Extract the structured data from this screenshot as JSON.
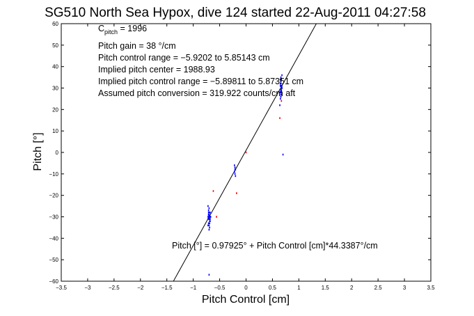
{
  "chart_data": {
    "type": "scatter",
    "title": "SG510 North Sea Hypox, dive 124 started 22-Aug-2011 04:27:58",
    "xlabel": "Pitch Control [cm]",
    "ylabel": "Pitch [°]",
    "xlim": [
      -3.5,
      3.5
    ],
    "ylim": [
      -60,
      60
    ],
    "xticks": [
      -3.5,
      -3,
      -2.5,
      -2,
      -1.5,
      -1,
      -0.5,
      0,
      0.5,
      1,
      1.5,
      2,
      2.5,
      3,
      3.5
    ],
    "yticks": [
      -60,
      -50,
      -40,
      -30,
      -20,
      -10,
      0,
      10,
      20,
      30,
      40,
      50,
      60
    ],
    "xtick_labels": [
      "−3.5",
      "−3",
      "−2.5",
      "−2",
      "−1.5",
      "−1",
      "−0.5",
      "0",
      "0.5",
      "1",
      "1.5",
      "2",
      "2.5",
      "3",
      "3.5"
    ],
    "ytick_labels": [
      "−60",
      "−50",
      "−40",
      "−30",
      "−20",
      "−10",
      "0",
      "10",
      "20",
      "30",
      "40",
      "50",
      "60"
    ],
    "grid": false,
    "annotations": {
      "c_pitch_main": "C",
      "c_pitch_sub": "pitch",
      "c_pitch_value": " = 1996",
      "lines": [
        "Pitch gain = 38 °/cm",
        "Pitch control range = −5.9202 to 5.85143 cm",
        "Implied pitch center = 1988.93",
        "Implied pitch control range = −5.89811 to 5.87351 cm",
        "Assumed pitch conversion = 319.922 counts/cm aft"
      ],
      "fit_label": "Pitch [°] = 0.97925° + Pitch Control [cm]*44.3387°/cm"
    },
    "fit_line": {
      "intercept": 0.97925,
      "slope": 44.3387,
      "color": "#000000"
    },
    "series": [
      {
        "color": "#0000ff",
        "x": [
          -0.72,
          -0.71,
          -0.7,
          -0.7,
          -0.69,
          -0.69,
          -0.68,
          -0.71,
          -0.7,
          -0.69,
          -0.72,
          -0.7,
          -0.68,
          -0.71,
          -0.69,
          -0.7,
          -0.67,
          -0.7,
          -0.72,
          -0.69,
          -0.71,
          -0.68,
          -0.7,
          -0.7,
          -0.69,
          -0.72,
          -0.68,
          -0.71,
          -0.7,
          -0.7,
          -0.22,
          -0.21,
          -0.2,
          -0.22,
          -0.21,
          -0.2,
          -0.21,
          -0.22,
          0.65,
          0.66,
          0.67,
          0.65,
          0.66,
          0.67,
          0.68,
          0.65,
          0.66,
          0.67,
          0.66,
          0.65,
          0.67,
          0.68,
          0.66,
          0.65,
          0.67,
          0.66,
          0.68,
          0.65,
          0.66,
          0.67,
          0.66,
          0.67,
          0.65,
          0.66,
          0.64,
          0.68,
          0.66,
          0.67,
          0.7
        ],
        "y": [
          -25,
          -27,
          -28,
          -29,
          -30,
          -31,
          -32,
          -33,
          -34,
          -35,
          -30,
          -29,
          -31,
          -28,
          -32,
          -30,
          -30,
          -26,
          -31,
          -33,
          -29,
          -30,
          -36,
          -31,
          -30,
          -34,
          -28,
          -29,
          -30,
          -57,
          -6,
          -7,
          -8,
          -9,
          -10,
          -11,
          -8,
          -9,
          25,
          26,
          27,
          28,
          29,
          30,
          31,
          32,
          33,
          34,
          35,
          28,
          29,
          30,
          31,
          32,
          27,
          26,
          30,
          31,
          29,
          28,
          33,
          30,
          34,
          27,
          22,
          36,
          29,
          31,
          -1
        ]
      },
      {
        "color": "#ff0000",
        "x": [
          -0.62,
          -0.56,
          -0.18,
          0.0,
          0.64,
          0.67
        ],
        "y": [
          -18,
          -30,
          -19,
          0,
          16,
          24
        ]
      }
    ]
  }
}
